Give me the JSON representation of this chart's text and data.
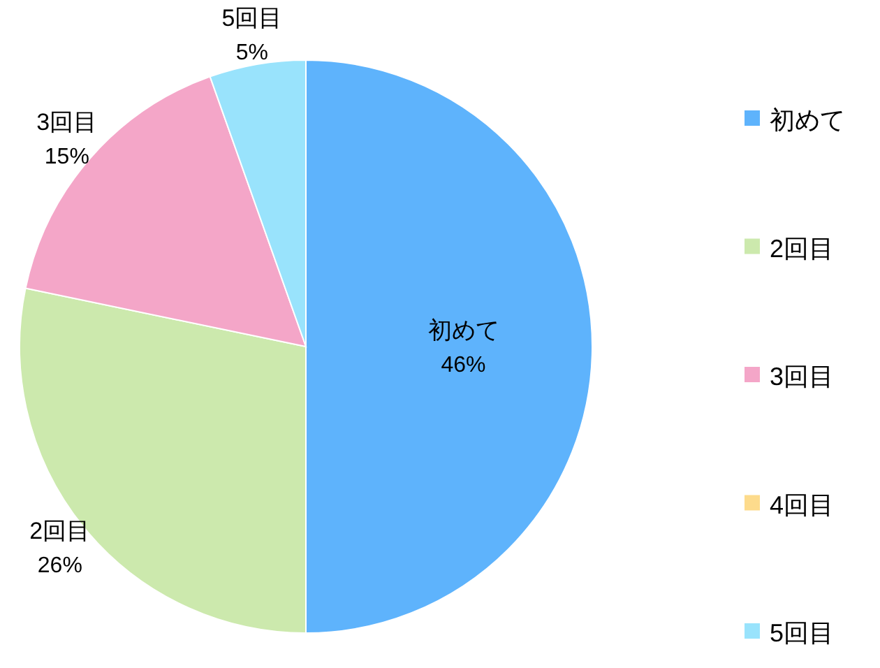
{
  "chart_data": {
    "type": "pie",
    "categories": [
      "初めて",
      "2回目",
      "3回目",
      "4回目",
      "5回目"
    ],
    "values": [
      46,
      26,
      15,
      0,
      5
    ],
    "value_labels": [
      "46%",
      "26%",
      "15%",
      null,
      "5%"
    ],
    "colors": [
      "#5eb3fc",
      "#cce9ad",
      "#f4a6c8",
      "#fddb8c",
      "#99e3fc"
    ],
    "legend": "right"
  }
}
